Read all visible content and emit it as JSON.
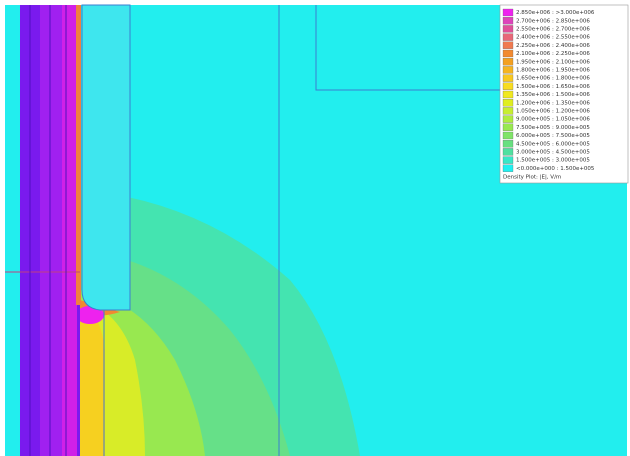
{
  "legend": {
    "entries": [
      {
        "label": "2.850e+006 : >3.000e+006",
        "color": "#ee22ee"
      },
      {
        "label": "2.700e+006 : 2.850e+006",
        "color": "#dd44bb"
      },
      {
        "label": "2.550e+006 : 2.700e+006",
        "color": "#e0509a"
      },
      {
        "label": "2.400e+006 : 2.550e+006",
        "color": "#e86878"
      },
      {
        "label": "2.250e+006 : 2.400e+006",
        "color": "#f07a50"
      },
      {
        "label": "2.100e+006 : 2.250e+006",
        "color": "#f28a30"
      },
      {
        "label": "1.950e+006 : 2.100e+006",
        "color": "#f4a020"
      },
      {
        "label": "1.800e+006 : 1.950e+006",
        "color": "#f6b420"
      },
      {
        "label": "1.650e+006 : 1.800e+006",
        "color": "#f8c820"
      },
      {
        "label": "1.500e+006 : 1.650e+006",
        "color": "#f8dc20"
      },
      {
        "label": "1.350e+006 : 1.500e+006",
        "color": "#f0e820"
      },
      {
        "label": "1.200e+006 : 1.350e+006",
        "color": "#e0ee20"
      },
      {
        "label": "1.050e+006 : 1.200e+006",
        "color": "#c8ee30"
      },
      {
        "label": "9.000e+005 : 1.050e+006",
        "color": "#b0ec40"
      },
      {
        "label": "7.500e+005 : 9.000e+005",
        "color": "#98e850"
      },
      {
        "label": "6.000e+005 : 7.500e+005",
        "color": "#80e468"
      },
      {
        "label": "4.500e+005 : 6.000e+005",
        "color": "#68e080"
      },
      {
        "label": "3.000e+005 : 4.500e+005",
        "color": "#50e0a0"
      },
      {
        "label": "1.500e+005 : 3.000e+005",
        "color": "#38e8c8"
      },
      {
        "label": "<0.000e+000 : 1.500e+005",
        "color": "#20f0f0"
      }
    ],
    "caption": "Density Plot: |E|, V/m"
  }
}
